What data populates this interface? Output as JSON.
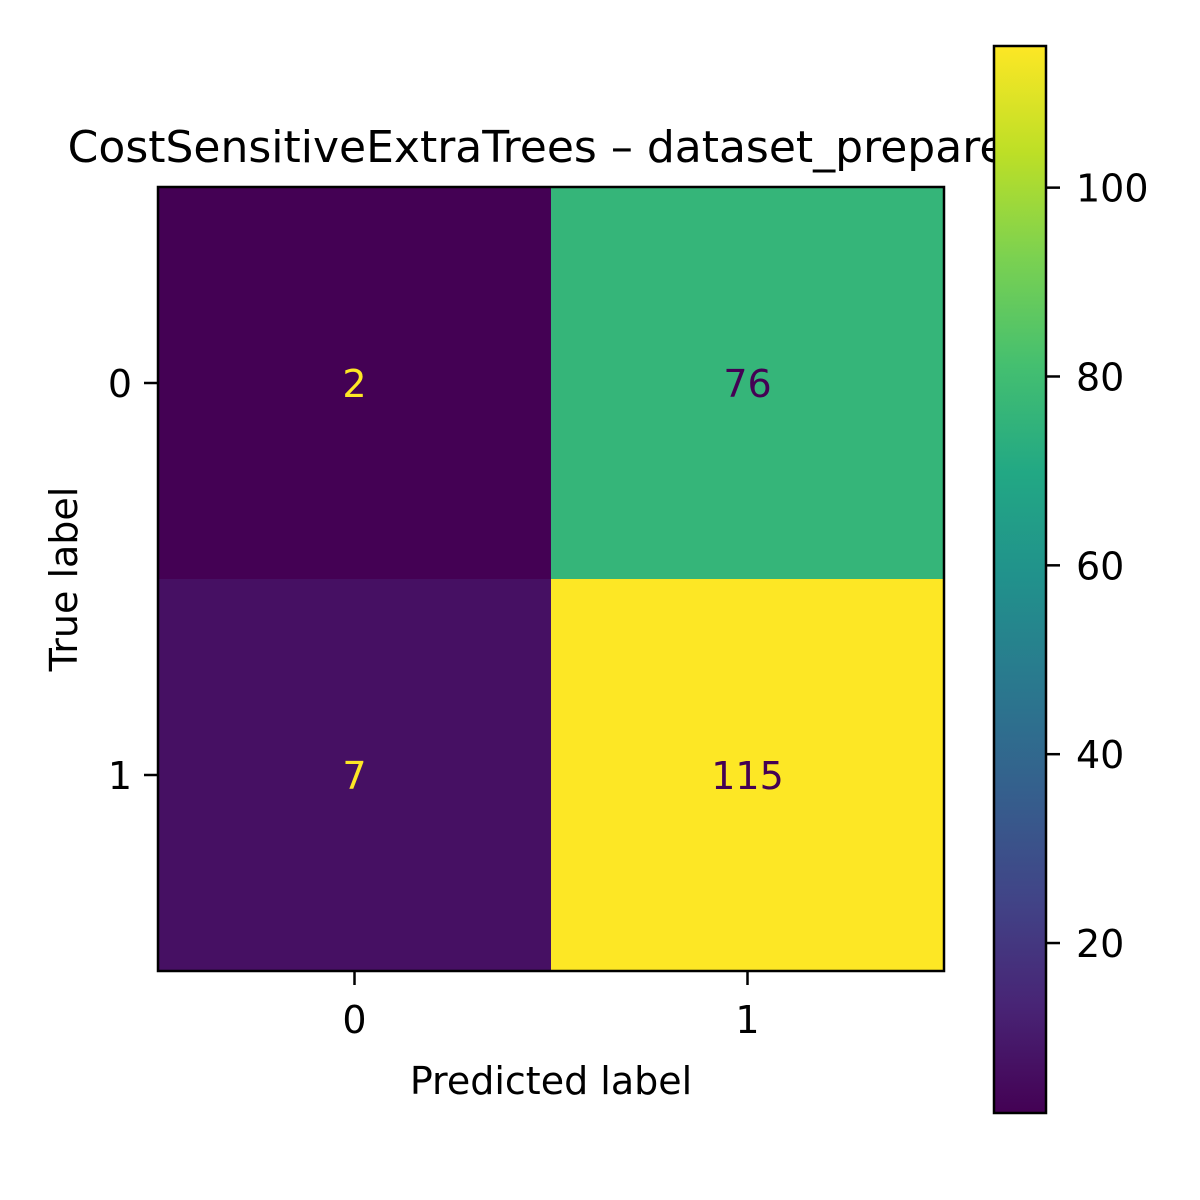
{
  "chart_data": {
    "type": "heatmap",
    "title": "CostSensitiveExtraTrees – dataset_prepared",
    "xlabel": "Predicted label",
    "ylabel": "True label",
    "x_categories": [
      "0",
      "1"
    ],
    "y_categories": [
      "0",
      "1"
    ],
    "values": [
      [
        2,
        76
      ],
      [
        7,
        115
      ]
    ],
    "colormap": "viridis",
    "colorbar": {
      "range": [
        2,
        115
      ],
      "ticks": [
        20,
        40,
        60,
        80,
        100
      ],
      "tick_labels": [
        "20",
        "40",
        "60",
        "80",
        "100"
      ]
    },
    "grid": false,
    "text_colors": {
      "on_dark": "#fde725",
      "on_light": "#440154"
    }
  }
}
